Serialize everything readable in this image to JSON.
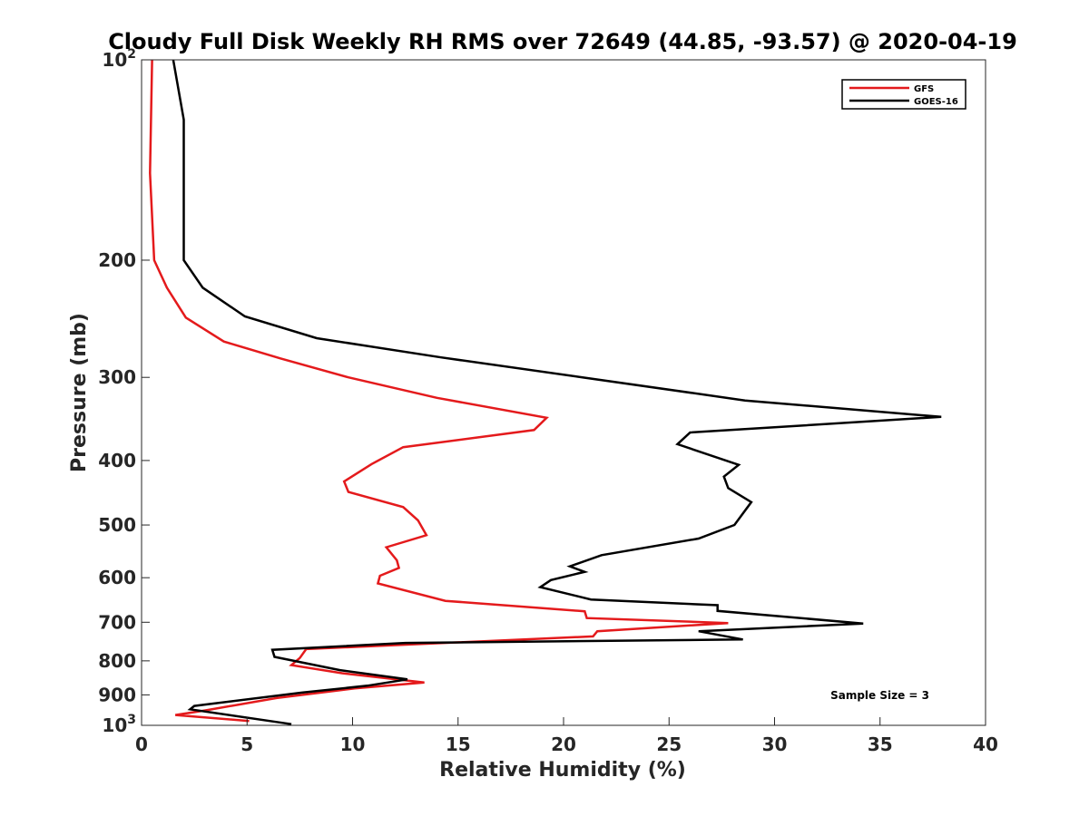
{
  "chart_data": {
    "type": "line",
    "title": "Cloudy Full Disk Weekly RH RMS over 72649 (44.85, -93.57) @ 2020-04-19",
    "xlabel": "Relative Humidity (%)",
    "ylabel": "Pressure (mb)",
    "xlim": [
      0,
      40
    ],
    "ylim": [
      100,
      1000
    ],
    "y_scale": "log",
    "y_reversed": true,
    "x_ticks": [
      "0",
      "5",
      "10",
      "15",
      "20",
      "25",
      "30",
      "35",
      "40"
    ],
    "y_ticks": [
      {
        "value": 100,
        "base": "10",
        "exp": "2"
      },
      {
        "value": 200,
        "label": "200"
      },
      {
        "value": 300,
        "label": "300"
      },
      {
        "value": 400,
        "label": "400"
      },
      {
        "value": 500,
        "label": "500"
      },
      {
        "value": 600,
        "label": "600"
      },
      {
        "value": 700,
        "label": "700"
      },
      {
        "value": 800,
        "label": "800"
      },
      {
        "value": 900,
        "label": "900"
      },
      {
        "value": 1000,
        "base": "10",
        "exp": "3"
      }
    ],
    "legend_position": "top-right",
    "grid": false,
    "annotation": "Sample Size = 3",
    "series": [
      {
        "name": "GFS",
        "color": "#e41a1c",
        "points": [
          [
            0.5,
            100
          ],
          [
            0.4,
            148
          ],
          [
            0.6,
            200
          ],
          [
            1.2,
            220
          ],
          [
            2.1,
            244
          ],
          [
            3.9,
            265
          ],
          [
            6.6,
            281
          ],
          [
            9.8,
            300
          ],
          [
            14.0,
            322
          ],
          [
            19.2,
            345
          ],
          [
            18.6,
            360
          ],
          [
            12.4,
            382
          ],
          [
            10.9,
            405
          ],
          [
            9.6,
            430
          ],
          [
            9.8,
            446
          ],
          [
            12.4,
            470
          ],
          [
            13.1,
            492
          ],
          [
            13.5,
            518
          ],
          [
            11.6,
            540
          ],
          [
            12.1,
            565
          ],
          [
            12.2,
            580
          ],
          [
            11.3,
            596
          ],
          [
            11.2,
            612
          ],
          [
            14.4,
            650
          ],
          [
            21.0,
            674
          ],
          [
            21.1,
            690
          ],
          [
            27.8,
            702
          ],
          [
            21.6,
            722
          ],
          [
            21.4,
            735
          ],
          [
            7.8,
            768
          ],
          [
            7.5,
            792
          ],
          [
            7.1,
            812
          ],
          [
            9.5,
            835
          ],
          [
            13.4,
            862
          ],
          [
            10.1,
            880
          ],
          [
            6.4,
            910
          ],
          [
            3.0,
            950
          ],
          [
            1.6,
            965
          ],
          [
            5.1,
            985
          ]
        ]
      },
      {
        "name": "GOES-16",
        "color": "#000000",
        "points": [
          [
            1.5,
            100
          ],
          [
            2.0,
            123
          ],
          [
            2.0,
            200
          ],
          [
            2.9,
            220
          ],
          [
            4.9,
            243
          ],
          [
            8.3,
            262
          ],
          [
            14.2,
            280
          ],
          [
            20.9,
            300
          ],
          [
            28.6,
            325
          ],
          [
            37.9,
            344
          ],
          [
            26.0,
            363
          ],
          [
            25.4,
            378
          ],
          [
            28.3,
            406
          ],
          [
            27.6,
            423
          ],
          [
            27.8,
            440
          ],
          [
            28.9,
            462
          ],
          [
            28.1,
            500
          ],
          [
            26.4,
            524
          ],
          [
            21.8,
            555
          ],
          [
            20.3,
            577
          ],
          [
            21.0,
            588
          ],
          [
            19.4,
            605
          ],
          [
            18.9,
            620
          ],
          [
            21.3,
            647
          ],
          [
            27.3,
            660
          ],
          [
            27.3,
            673
          ],
          [
            34.2,
            703
          ],
          [
            26.4,
            722
          ],
          [
            28.5,
            743
          ],
          [
            12.5,
            752
          ],
          [
            6.2,
            770
          ],
          [
            6.3,
            789
          ],
          [
            9.4,
            826
          ],
          [
            12.6,
            853
          ],
          [
            10.7,
            872
          ],
          [
            7.6,
            893
          ],
          [
            2.5,
            935
          ],
          [
            2.3,
            946
          ],
          [
            7.1,
            996
          ]
        ]
      }
    ]
  }
}
